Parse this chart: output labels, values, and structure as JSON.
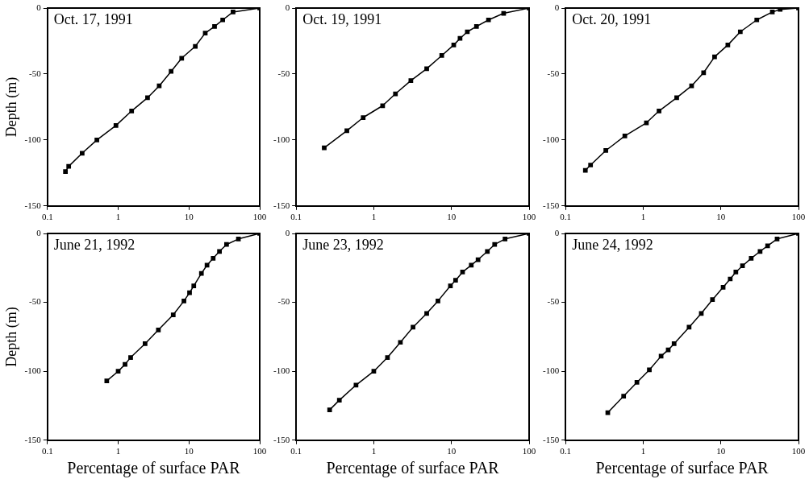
{
  "chart_data": [
    {
      "type": "line",
      "title": "Oct. 17, 1991",
      "ylabel": "Depth (m)",
      "color": "#000000",
      "marker": "square",
      "line_style": "solid",
      "log": "x",
      "grid": false,
      "xlim": [
        0.1,
        100
      ],
      "ylim": [
        -150,
        0
      ],
      "xticks": [
        0.1,
        1,
        10,
        100
      ],
      "yticks": [
        0,
        -50,
        -100,
        -150
      ],
      "x": [
        0.18,
        0.2,
        0.31,
        0.5,
        0.93,
        1.55,
        2.6,
        3.8,
        5.6,
        7.9,
        12.3,
        17,
        23,
        30,
        42,
        100
      ],
      "values": [
        -124,
        -120,
        -110,
        -100,
        -89,
        -78,
        -68,
        -59,
        -48,
        -38,
        -29,
        -19,
        -14,
        -9,
        -3,
        0
      ]
    },
    {
      "type": "line",
      "title": "Oct. 19, 1991",
      "color": "#000000",
      "marker": "square",
      "line_style": "solid",
      "log": "x",
      "grid": false,
      "xlim": [
        0.1,
        100
      ],
      "ylim": [
        -150,
        0
      ],
      "xticks": [
        0.1,
        1,
        10,
        100
      ],
      "yticks": [
        0,
        -50,
        -100,
        -150
      ],
      "x": [
        0.23,
        0.45,
        0.73,
        1.3,
        1.9,
        3,
        4.8,
        7.5,
        10.7,
        12.9,
        16,
        21,
        30,
        47,
        100
      ],
      "values": [
        -106,
        -93,
        -83,
        -74,
        -65,
        -55,
        -46,
        -36,
        -28,
        -23,
        -18,
        -14,
        -9,
        -4,
        0
      ]
    },
    {
      "type": "line",
      "title": "Oct. 20, 1991",
      "color": "#000000",
      "marker": "square",
      "line_style": "solid",
      "log": "x",
      "grid": false,
      "xlim": [
        0.1,
        100
      ],
      "ylim": [
        -150,
        0
      ],
      "xticks": [
        0.1,
        1,
        10,
        100
      ],
      "yticks": [
        0,
        -50,
        -100,
        -150
      ],
      "x": [
        0.18,
        0.21,
        0.33,
        0.58,
        1.1,
        1.6,
        2.7,
        4.2,
        6,
        8.3,
        12.3,
        17.8,
        29,
        46,
        58,
        100
      ],
      "values": [
        -123,
        -119,
        -108,
        -97,
        -87,
        -78,
        -68,
        -59,
        -49,
        -37,
        -28,
        -18,
        -9,
        -3,
        -1,
        0
      ]
    },
    {
      "type": "line",
      "title": "June 21, 1992",
      "ylabel": "Depth (m)",
      "xlabel": "Percentage of surface PAR",
      "color": "#000000",
      "marker": "square",
      "line_style": "solid",
      "log": "x",
      "grid": false,
      "xlim": [
        0.1,
        100
      ],
      "ylim": [
        -150,
        0
      ],
      "xticks": [
        0.1,
        1,
        10,
        100
      ],
      "yticks": [
        0,
        -50,
        -100,
        -150
      ],
      "x": [
        0.69,
        1,
        1.25,
        1.5,
        2.4,
        3.7,
        6,
        8.5,
        10.2,
        11.7,
        15,
        18,
        22,
        27,
        34,
        50,
        100
      ],
      "values": [
        -107,
        -100,
        -95,
        -90,
        -80,
        -70,
        -59,
        -49,
        -43,
        -38,
        -29,
        -23,
        -18,
        -13,
        -8,
        -4,
        0
      ]
    },
    {
      "type": "line",
      "title": "June 23, 1992",
      "xlabel": "Percentage of surface PAR",
      "color": "#000000",
      "marker": "square",
      "line_style": "solid",
      "log": "x",
      "grid": false,
      "xlim": [
        0.1,
        100
      ],
      "ylim": [
        -150,
        0
      ],
      "xticks": [
        0.1,
        1,
        10,
        100
      ],
      "yticks": [
        0,
        -50,
        -100,
        -150
      ],
      "x": [
        0.27,
        0.36,
        0.59,
        1,
        1.5,
        2.2,
        3.2,
        4.8,
        6.7,
        9.7,
        11.3,
        13.9,
        18,
        22,
        29,
        36,
        49,
        100
      ],
      "values": [
        -128,
        -121,
        -110,
        -100,
        -90,
        -79,
        -68,
        -58,
        -49,
        -38,
        -34,
        -28,
        -23,
        -19,
        -13,
        -8,
        -4,
        0
      ]
    },
    {
      "type": "line",
      "title": "June 24, 1992",
      "xlabel": "Percentage of surface PAR",
      "color": "#000000",
      "marker": "square",
      "line_style": "solid",
      "log": "x",
      "grid": false,
      "xlim": [
        0.1,
        100
      ],
      "ylim": [
        -150,
        0
      ],
      "xticks": [
        0.1,
        1,
        10,
        100
      ],
      "yticks": [
        0,
        -50,
        -100,
        -150
      ],
      "x": [
        0.35,
        0.56,
        0.83,
        1.2,
        1.7,
        2.1,
        2.5,
        3.9,
        5.6,
        7.8,
        10.7,
        13.2,
        15.6,
        19,
        24.6,
        32,
        40,
        53,
        100
      ],
      "values": [
        -130,
        -118,
        -108,
        -99,
        -89,
        -84.5,
        -80,
        -68,
        -58,
        -48,
        -39,
        -33,
        -28,
        -23.5,
        -18,
        -13,
        -9,
        -4,
        0
      ]
    }
  ]
}
